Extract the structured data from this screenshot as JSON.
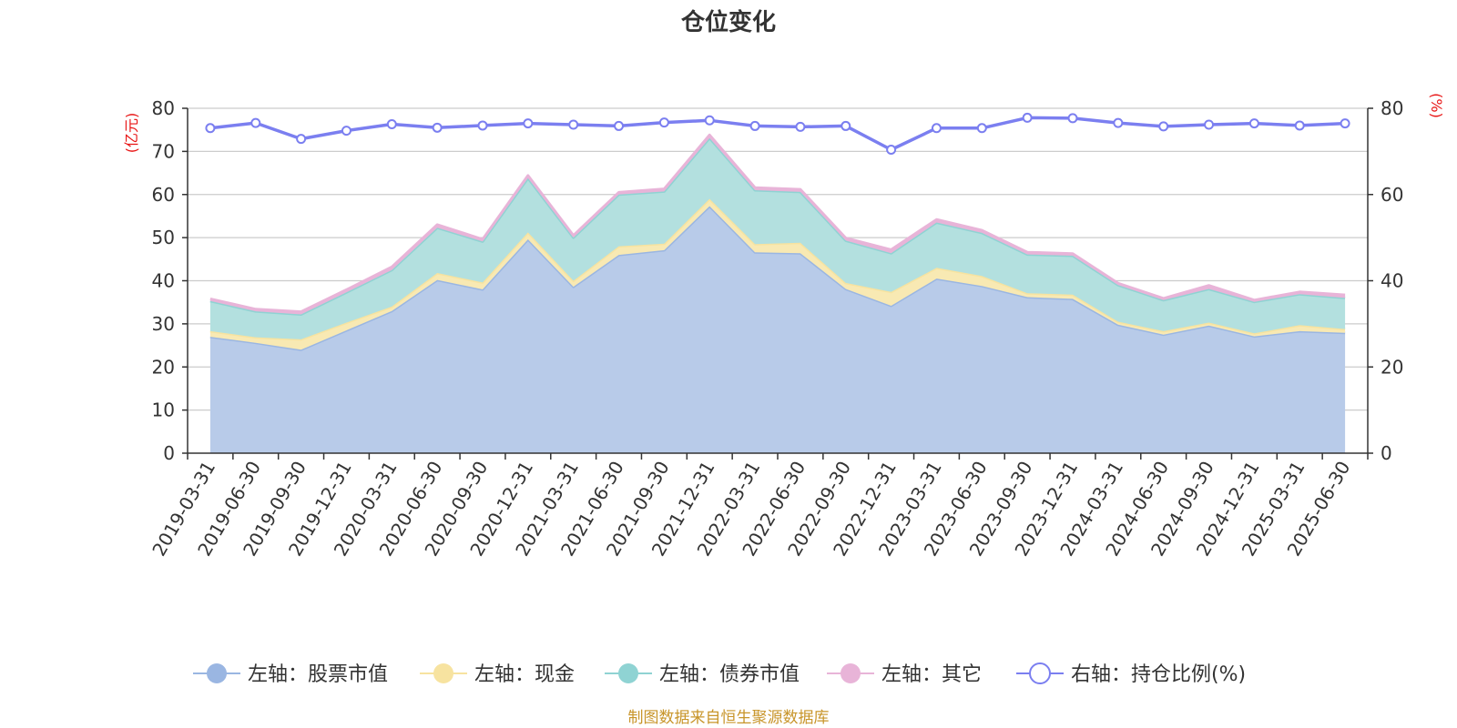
{
  "chart_data": {
    "type": "area",
    "title": "仓位变化",
    "categories": [
      "2019-03-31",
      "2019-06-30",
      "2019-09-30",
      "2019-12-31",
      "2020-03-31",
      "2020-06-30",
      "2020-09-30",
      "2020-12-31",
      "2021-03-31",
      "2021-06-30",
      "2021-09-30",
      "2021-12-31",
      "2022-03-31",
      "2022-06-30",
      "2022-09-30",
      "2022-12-31",
      "2023-03-31",
      "2023-06-30",
      "2023-09-30",
      "2023-12-31",
      "2024-03-31",
      "2024-06-30",
      "2024-09-30",
      "2024-12-31",
      "2025-03-31",
      "2025-06-30"
    ],
    "left_axis": {
      "unit": "(亿元)",
      "ylim": [
        0,
        80
      ],
      "ticks": [
        0,
        10,
        20,
        30,
        40,
        50,
        60,
        70,
        80
      ]
    },
    "right_axis": {
      "unit": "(%)",
      "ylim": [
        0,
        80
      ],
      "ticks": [
        0,
        20,
        40,
        60,
        80
      ]
    },
    "stacked_series": [
      {
        "name": "左轴：股票市值",
        "color": "#9ab6e2",
        "fill": "#b8cbe9",
        "values": [
          27.0,
          25.6,
          24.0,
          28.5,
          33.0,
          40.2,
          38.0,
          49.6,
          38.6,
          46.0,
          47.1,
          57.3,
          46.6,
          46.4,
          38.1,
          34.2,
          40.5,
          38.8,
          36.2,
          35.8,
          29.8,
          27.5,
          29.6,
          27.1,
          28.3,
          27.9
        ]
      },
      {
        "name": "左轴：现金",
        "color": "#f7e3a0",
        "fill": "#f8e9b3",
        "values": [
          1.3,
          1.3,
          2.4,
          1.8,
          1.0,
          1.6,
          1.6,
          1.6,
          1.4,
          2.0,
          1.5,
          1.7,
          1.9,
          2.4,
          1.4,
          3.2,
          2.5,
          2.3,
          0.9,
          1.0,
          0.7,
          0.8,
          0.7,
          0.7,
          1.4,
          0.9
        ]
      },
      {
        "name": "左轴：债券市值",
        "color": "#8fd3d3",
        "fill": "#b3e0df",
        "values": [
          7.0,
          6.0,
          5.8,
          7.0,
          8.5,
          10.5,
          9.5,
          12.6,
          10.0,
          12.0,
          12.1,
          14.1,
          12.5,
          11.8,
          9.8,
          9.0,
          10.5,
          10.0,
          9.0,
          9.0,
          8.5,
          7.2,
          7.8,
          7.3,
          7.2,
          7.2
        ]
      },
      {
        "name": "左轴：其它",
        "color": "#e8b4d8",
        "fill": "#e8b4d8",
        "values": [
          0.5,
          0.5,
          0.6,
          0.6,
          0.7,
          0.7,
          0.5,
          0.6,
          0.5,
          0.5,
          0.6,
          0.7,
          0.6,
          0.6,
          0.6,
          0.8,
          0.7,
          0.6,
          0.5,
          0.5,
          0.4,
          0.4,
          0.8,
          0.4,
          0.5,
          0.7
        ]
      }
    ],
    "line_series": {
      "name": "右轴：持仓比例(%)",
      "color": "#7b7ff0",
      "values": [
        75.4,
        76.6,
        72.9,
        74.8,
        76.3,
        75.5,
        76.0,
        76.5,
        76.2,
        75.9,
        76.7,
        77.2,
        75.9,
        75.7,
        75.9,
        70.4,
        75.4,
        75.4,
        77.8,
        77.7,
        76.6,
        75.8,
        76.2,
        76.5,
        76.0,
        76.5
      ]
    },
    "legend_position": "bottom",
    "grid": true
  },
  "legend": [
    {
      "label": "左轴：股票市值",
      "icon": "filled-circle",
      "color": "#9ab6e2"
    },
    {
      "label": "左轴：现金",
      "icon": "filled-circle",
      "color": "#f7e3a0"
    },
    {
      "label": "左轴：债券市值",
      "icon": "filled-circle",
      "color": "#8fd3d3"
    },
    {
      "label": "左轴：其它",
      "icon": "filled-circle",
      "color": "#e8b4d8"
    },
    {
      "label": "右轴：持仓比例(%)",
      "icon": "hollow-circle",
      "color": "#7b7ff0"
    }
  ],
  "source_note": "制图数据来自恒生聚源数据库"
}
